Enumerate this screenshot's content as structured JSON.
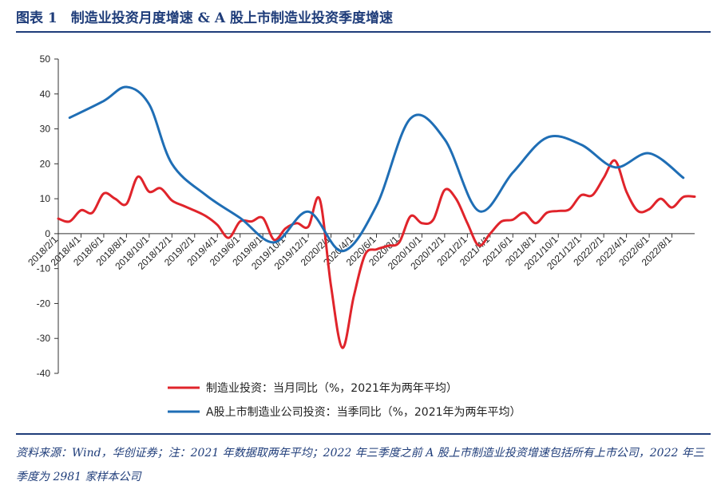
{
  "figure": {
    "title": "图表 1　制造业投资月度增速 & A 股上市制造业投资季度增速",
    "source": "资料来源：Wind，华创证券；注：2021 年数据取两年平均；2022 年三季度之前 A 股上市制造业投资增速包括所有上市公司，2022 年三季度为 2981 家样本公司"
  },
  "chart_data": {
    "type": "line",
    "ylim": [
      -40,
      50
    ],
    "yticks": [
      -40,
      -30,
      -20,
      -10,
      0,
      10,
      20,
      30,
      40,
      50
    ],
    "ytick_labels": [
      "-40",
      "-30",
      "-20",
      "-10",
      "0",
      "10",
      "20",
      "30",
      "40",
      "50"
    ],
    "xlim": [
      "2018-02",
      "2022-10"
    ],
    "xticks": [
      "2018/2/1",
      "2018/4/1",
      "2018/6/1",
      "2018/8/1",
      "2018/10/1",
      "2018/12/1",
      "2019/2/1",
      "2019/4/1",
      "2019/6/1",
      "2019/8/1",
      "2019/10/1",
      "2019/12/1",
      "2020/2/1",
      "2020/4/1",
      "2020/6/1",
      "2020/8/1",
      "2020/10/1",
      "2020/12/1",
      "2021/2/1",
      "2021/4/1",
      "2021/6/1",
      "2021/8/1",
      "2021/10/1",
      "2021/12/1",
      "2022/2/1",
      "2022/4/1",
      "2022/6/1",
      "2022/8/1"
    ],
    "grid": false,
    "legend_position": "bottom",
    "series": [
      {
        "name": "制造业投资：当月同比（%，2021年为两年平均）",
        "color": "#e0242b",
        "points": [
          [
            "2018-02",
            4.3
          ],
          [
            "2018-03",
            3.5
          ],
          [
            "2018-04",
            6.7
          ],
          [
            "2018-05",
            6.0
          ],
          [
            "2018-06",
            11.5
          ],
          [
            "2018-07",
            10.0
          ],
          [
            "2018-08",
            8.5
          ],
          [
            "2018-09",
            16.3
          ],
          [
            "2018-10",
            12.0
          ],
          [
            "2018-11",
            13.0
          ],
          [
            "2018-12",
            9.5
          ],
          [
            "2019-01",
            8.0
          ],
          [
            "2019-02",
            6.6
          ],
          [
            "2019-03",
            5.0
          ],
          [
            "2019-04",
            2.5
          ],
          [
            "2019-05",
            -1.2
          ],
          [
            "2019-06",
            3.5
          ],
          [
            "2019-07",
            3.5
          ],
          [
            "2019-08",
            4.5
          ],
          [
            "2019-09",
            -1.8
          ],
          [
            "2019-10",
            1.5
          ],
          [
            "2019-11",
            3.0
          ],
          [
            "2019-12",
            2.0
          ],
          [
            "2020-01",
            9.9
          ],
          [
            "2020-02",
            -15.0
          ],
          [
            "2020-03",
            -32.7
          ],
          [
            "2020-04",
            -18.0
          ],
          [
            "2020-05",
            -6.0
          ],
          [
            "2020-06",
            -4.5
          ],
          [
            "2020-07",
            -3.5
          ],
          [
            "2020-08",
            -2.5
          ],
          [
            "2020-09",
            5.0
          ],
          [
            "2020-10",
            3.0
          ],
          [
            "2020-11",
            4.0
          ],
          [
            "2020-12",
            12.5
          ],
          [
            "2021-01",
            10.0
          ],
          [
            "2021-02",
            3.0
          ],
          [
            "2021-03",
            -3.4
          ],
          [
            "2021-04",
            0.0
          ],
          [
            "2021-05",
            3.5
          ],
          [
            "2021-06",
            4.0
          ],
          [
            "2021-07",
            6.0
          ],
          [
            "2021-08",
            3.0
          ],
          [
            "2021-09",
            6.0
          ],
          [
            "2021-10",
            6.5
          ],
          [
            "2021-11",
            7.0
          ],
          [
            "2021-12",
            11.0
          ],
          [
            "2022-01",
            11.0
          ],
          [
            "2022-02",
            16.0
          ],
          [
            "2022-03",
            20.9
          ],
          [
            "2022-04",
            12.0
          ],
          [
            "2022-05",
            6.5
          ],
          [
            "2022-06",
            7.0
          ],
          [
            "2022-07",
            10.0
          ],
          [
            "2022-08",
            7.5
          ],
          [
            "2022-09",
            10.5
          ],
          [
            "2022-10",
            10.6
          ]
        ]
      },
      {
        "name": "A股上市制造业公司投资：当季同比（%，2021年为两年平均）",
        "color": "#1f6eb5",
        "points": [
          [
            "2018-03",
            33.2
          ],
          [
            "2018-06",
            38.0
          ],
          [
            "2018-08",
            42.0
          ],
          [
            "2018-10",
            37.0
          ],
          [
            "2018-12",
            20.0
          ],
          [
            "2019-03",
            11.0
          ],
          [
            "2019-06",
            4.5
          ],
          [
            "2019-09",
            -2.5
          ],
          [
            "2019-12",
            6.3
          ],
          [
            "2020-03",
            -5.0
          ],
          [
            "2020-06",
            8.0
          ],
          [
            "2020-09",
            33.0
          ],
          [
            "2020-12",
            27.0
          ],
          [
            "2021-03",
            6.5
          ],
          [
            "2021-06",
            17.5
          ],
          [
            "2021-09",
            27.5
          ],
          [
            "2021-12",
            25.5
          ],
          [
            "2022-03",
            19.0
          ],
          [
            "2022-06",
            23.0
          ],
          [
            "2022-09",
            16.0
          ]
        ]
      }
    ]
  }
}
